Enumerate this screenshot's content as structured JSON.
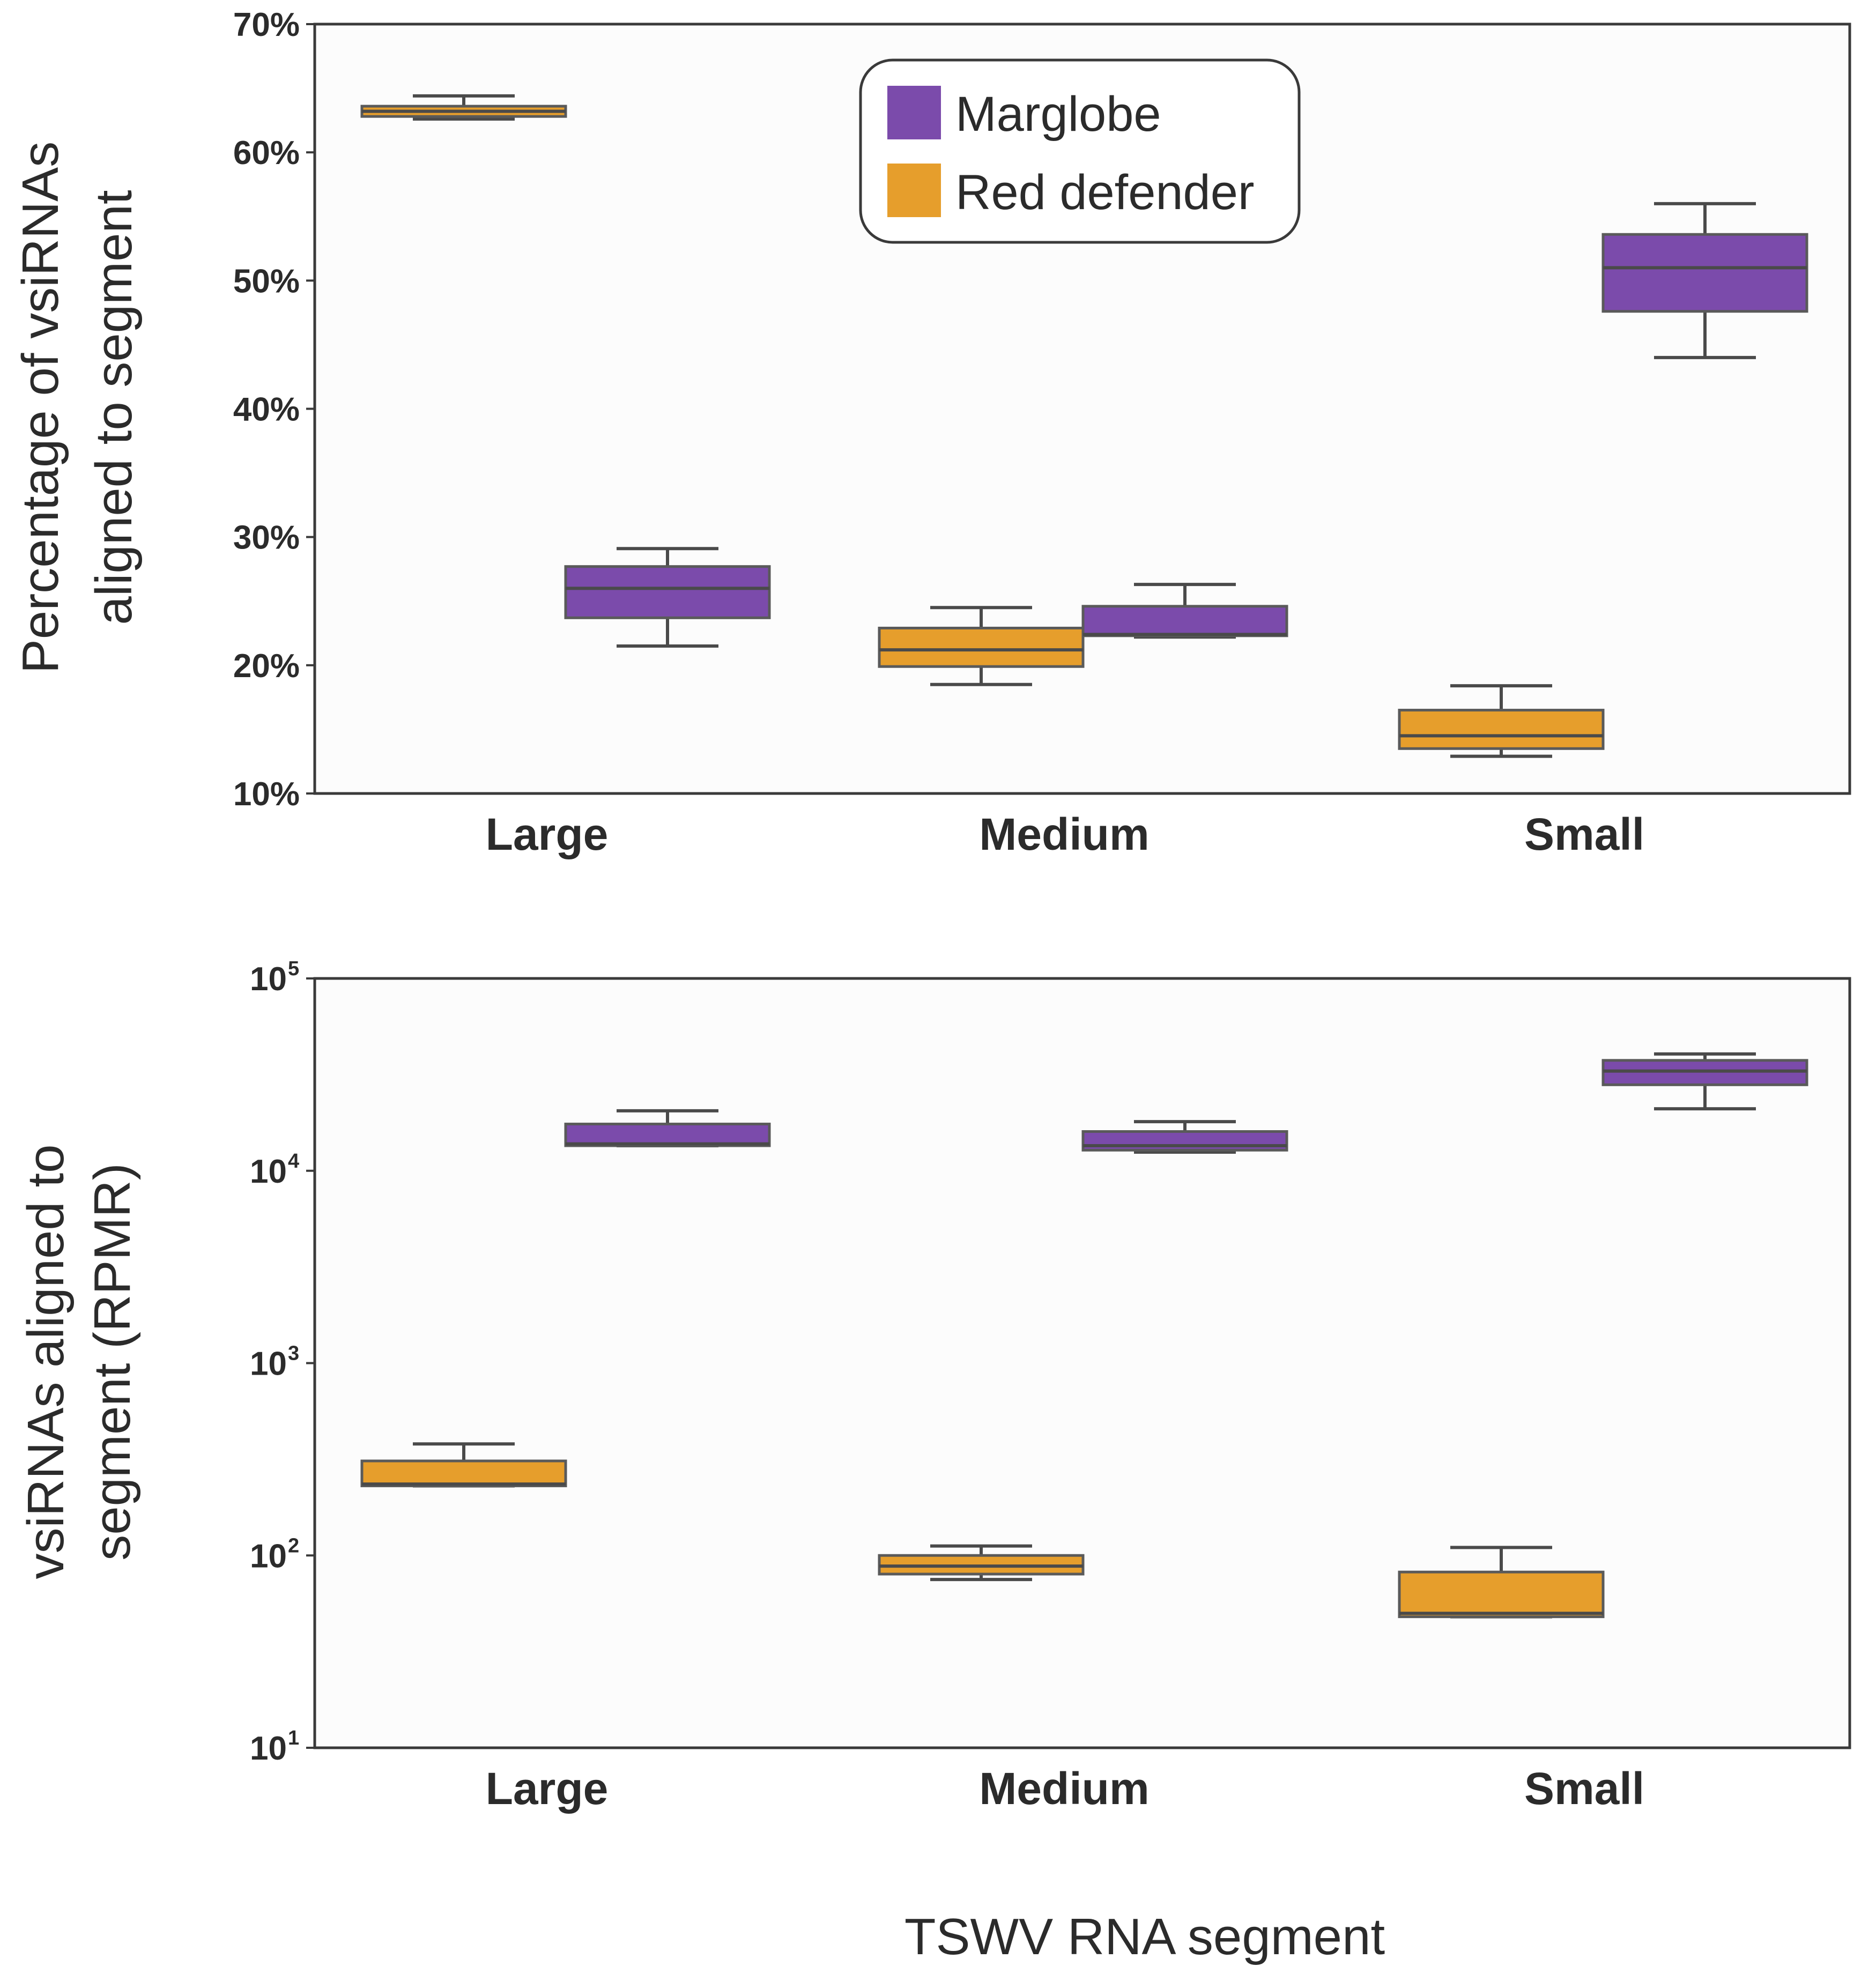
{
  "figure": {
    "shared_xlabel": "TSWV RNA segment",
    "legend": [
      {
        "name": "Marglobe",
        "color": "#7b4bab"
      },
      {
        "name": "Red defender",
        "color": "#e69e2c"
      }
    ]
  },
  "chart_data": [
    {
      "type": "box",
      "title": "",
      "ylabel_lines": [
        "Percentage of vsiRNAs",
        "aligned to segment"
      ],
      "xlabel": "TSWV RNA segment",
      "yscale": "linear",
      "ylim": [
        10,
        70
      ],
      "yticks": [
        10,
        20,
        30,
        40,
        50,
        60,
        70
      ],
      "ytick_labels": [
        "10%",
        "20%",
        "30%",
        "40%",
        "50%",
        "60%",
        "70%"
      ],
      "categories": [
        "Large",
        "Medium",
        "Small"
      ],
      "legend_position": "top-center",
      "series": [
        {
          "name": "Red defender",
          "color": "#e69e2c",
          "boxes": [
            {
              "category": "Large",
              "min": 62.6,
              "q1": 62.8,
              "median": 63.2,
              "q3": 63.6,
              "max": 64.4
            },
            {
              "category": "Medium",
              "min": 18.5,
              "q1": 19.9,
              "median": 21.2,
              "q3": 22.9,
              "max": 24.5
            },
            {
              "category": "Small",
              "min": 12.9,
              "q1": 13.5,
              "median": 14.5,
              "q3": 16.5,
              "max": 18.4
            }
          ]
        },
        {
          "name": "Marglobe",
          "color": "#7b4bab",
          "boxes": [
            {
              "category": "Large",
              "min": 21.5,
              "q1": 23.7,
              "median": 26.0,
              "q3": 27.7,
              "max": 29.1
            },
            {
              "category": "Medium",
              "min": 22.2,
              "q1": 22.3,
              "median": 22.4,
              "q3": 24.6,
              "max": 26.3
            },
            {
              "category": "Small",
              "min": 44.0,
              "q1": 47.6,
              "median": 51.0,
              "q3": 53.6,
              "max": 56.0
            }
          ]
        }
      ]
    },
    {
      "type": "box",
      "title": "",
      "ylabel_lines": [
        "vsiRNAs aligned to",
        "segment (RPMR)"
      ],
      "xlabel": "TSWV RNA segment",
      "yscale": "log",
      "ylim": [
        10,
        100000
      ],
      "yticks": [
        10,
        100,
        1000,
        10000,
        100000
      ],
      "ytick_labels": [
        {
          "base": "10",
          "exp": "1"
        },
        {
          "base": "10",
          "exp": "2"
        },
        {
          "base": "10",
          "exp": "3"
        },
        {
          "base": "10",
          "exp": "4"
        },
        {
          "base": "10",
          "exp": "5"
        }
      ],
      "categories": [
        "Large",
        "Medium",
        "Small"
      ],
      "series": [
        {
          "name": "Red defender",
          "color": "#e69e2c",
          "boxes": [
            {
              "category": "Large",
              "min": 230,
              "q1": 230,
              "median": 235,
              "q3": 310,
              "max": 380
            },
            {
              "category": "Medium",
              "min": 75,
              "q1": 80,
              "median": 88,
              "q3": 100,
              "max": 112
            },
            {
              "category": "Small",
              "min": 48,
              "q1": 48,
              "median": 50,
              "q3": 82,
              "max": 110
            }
          ]
        },
        {
          "name": "Marglobe",
          "color": "#7b4bab",
          "boxes": [
            {
              "category": "Large",
              "min": 13500,
              "q1": 13500,
              "median": 13800,
              "q3": 17500,
              "max": 20500
            },
            {
              "category": "Medium",
              "min": 12500,
              "q1": 12800,
              "median": 13500,
              "q3": 16000,
              "max": 18000
            },
            {
              "category": "Small",
              "min": 21000,
              "q1": 28000,
              "median": 33000,
              "q3": 37500,
              "max": 40500
            }
          ]
        }
      ]
    }
  ]
}
